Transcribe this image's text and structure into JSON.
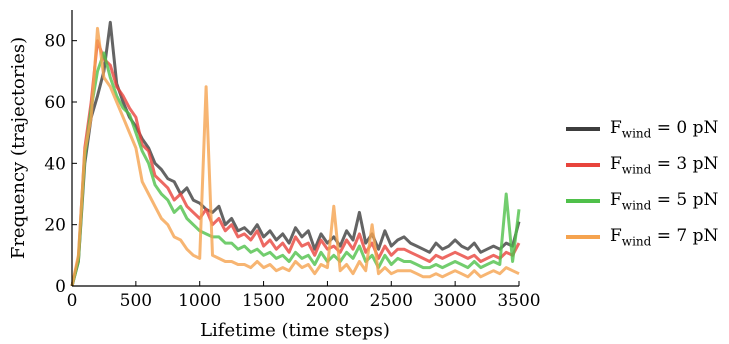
{
  "chart_data": {
    "type": "line",
    "title": "",
    "xlabel": "Lifetime (time steps)",
    "ylabel": "Frequency (trajectories)",
    "xlim": [
      0,
      3500
    ],
    "ylim": [
      0,
      90
    ],
    "xticks": [
      0,
      500,
      1000,
      1500,
      2000,
      2500,
      3000,
      3500
    ],
    "yticks": [
      0,
      20,
      40,
      60,
      80
    ],
    "grid": false,
    "legend_position": "right",
    "x": [
      0,
      50,
      100,
      150,
      200,
      250,
      300,
      350,
      400,
      450,
      500,
      550,
      600,
      650,
      700,
      750,
      800,
      850,
      900,
      950,
      1000,
      1050,
      1100,
      1150,
      1200,
      1250,
      1300,
      1350,
      1400,
      1450,
      1500,
      1550,
      1600,
      1650,
      1700,
      1750,
      1800,
      1850,
      1900,
      1950,
      2000,
      2050,
      2100,
      2150,
      2200,
      2250,
      2300,
      2350,
      2400,
      2450,
      2500,
      2550,
      2600,
      2650,
      2700,
      2750,
      2800,
      2850,
      2900,
      2950,
      3000,
      3050,
      3100,
      3150,
      3200,
      3250,
      3300,
      3350,
      3400,
      3450,
      3500
    ],
    "series": [
      {
        "name": "F",
        "sub": "wind",
        "suffix": " = 0 pN",
        "color": "#3d3d3d",
        "values": [
          0,
          8,
          40,
          55,
          62,
          70,
          86,
          66,
          60,
          55,
          52,
          48,
          45,
          40,
          38,
          35,
          34,
          30,
          32,
          28,
          27,
          25,
          24,
          26,
          20,
          22,
          18,
          19,
          17,
          20,
          16,
          18,
          15,
          17,
          14,
          19,
          16,
          18,
          12,
          17,
          14,
          16,
          13,
          18,
          15,
          24,
          14,
          17,
          12,
          18,
          13,
          15,
          16,
          14,
          13,
          12,
          11,
          14,
          12,
          13,
          15,
          13,
          12,
          14,
          11,
          12,
          13,
          12,
          14,
          13,
          21
        ]
      },
      {
        "name": "F",
        "sub": "wind",
        "suffix": " = 3 pN",
        "color": "#e8443c",
        "values": [
          0,
          9,
          45,
          60,
          80,
          74,
          72,
          65,
          62,
          58,
          55,
          46,
          44,
          36,
          34,
          32,
          28,
          30,
          26,
          24,
          22,
          25,
          20,
          22,
          18,
          20,
          16,
          17,
          15,
          18,
          13,
          15,
          12,
          14,
          11,
          16,
          13,
          14,
          10,
          15,
          12,
          13,
          11,
          15,
          12,
          17,
          11,
          14,
          9,
          13,
          10,
          12,
          12,
          11,
          10,
          9,
          8,
          10,
          9,
          10,
          11,
          10,
          9,
          10,
          8,
          9,
          10,
          9,
          11,
          10,
          14
        ]
      },
      {
        "name": "F",
        "sub": "wind",
        "suffix": " = 5 pN",
        "color": "#4fc04a",
        "values": [
          0,
          8,
          42,
          58,
          70,
          76,
          68,
          62,
          58,
          56,
          50,
          44,
          40,
          33,
          30,
          28,
          24,
          26,
          22,
          20,
          18,
          17,
          16,
          16,
          14,
          14,
          12,
          13,
          11,
          12,
          10,
          11,
          9,
          10,
          8,
          11,
          9,
          10,
          7,
          11,
          8,
          10,
          8,
          11,
          9,
          13,
          8,
          10,
          6,
          10,
          7,
          9,
          8,
          8,
          7,
          6,
          6,
          7,
          6,
          7,
          8,
          7,
          6,
          8,
          6,
          7,
          8,
          7,
          30,
          8,
          25
        ]
      },
      {
        "name": "F",
        "sub": "wind",
        "suffix": " = 7 pN",
        "color": "#f5a34f",
        "values": [
          0,
          10,
          44,
          55,
          84,
          68,
          65,
          60,
          55,
          50,
          45,
          34,
          30,
          26,
          22,
          20,
          16,
          15,
          12,
          10,
          9,
          65,
          10,
          9,
          8,
          8,
          7,
          7,
          6,
          8,
          6,
          7,
          5,
          6,
          5,
          8,
          6,
          7,
          4,
          7,
          6,
          26,
          5,
          7,
          4,
          8,
          5,
          20,
          4,
          6,
          4,
          5,
          5,
          5,
          4,
          3,
          3,
          4,
          3,
          4,
          5,
          4,
          3,
          5,
          3,
          4,
          5,
          4,
          6,
          5,
          4
        ]
      }
    ]
  }
}
